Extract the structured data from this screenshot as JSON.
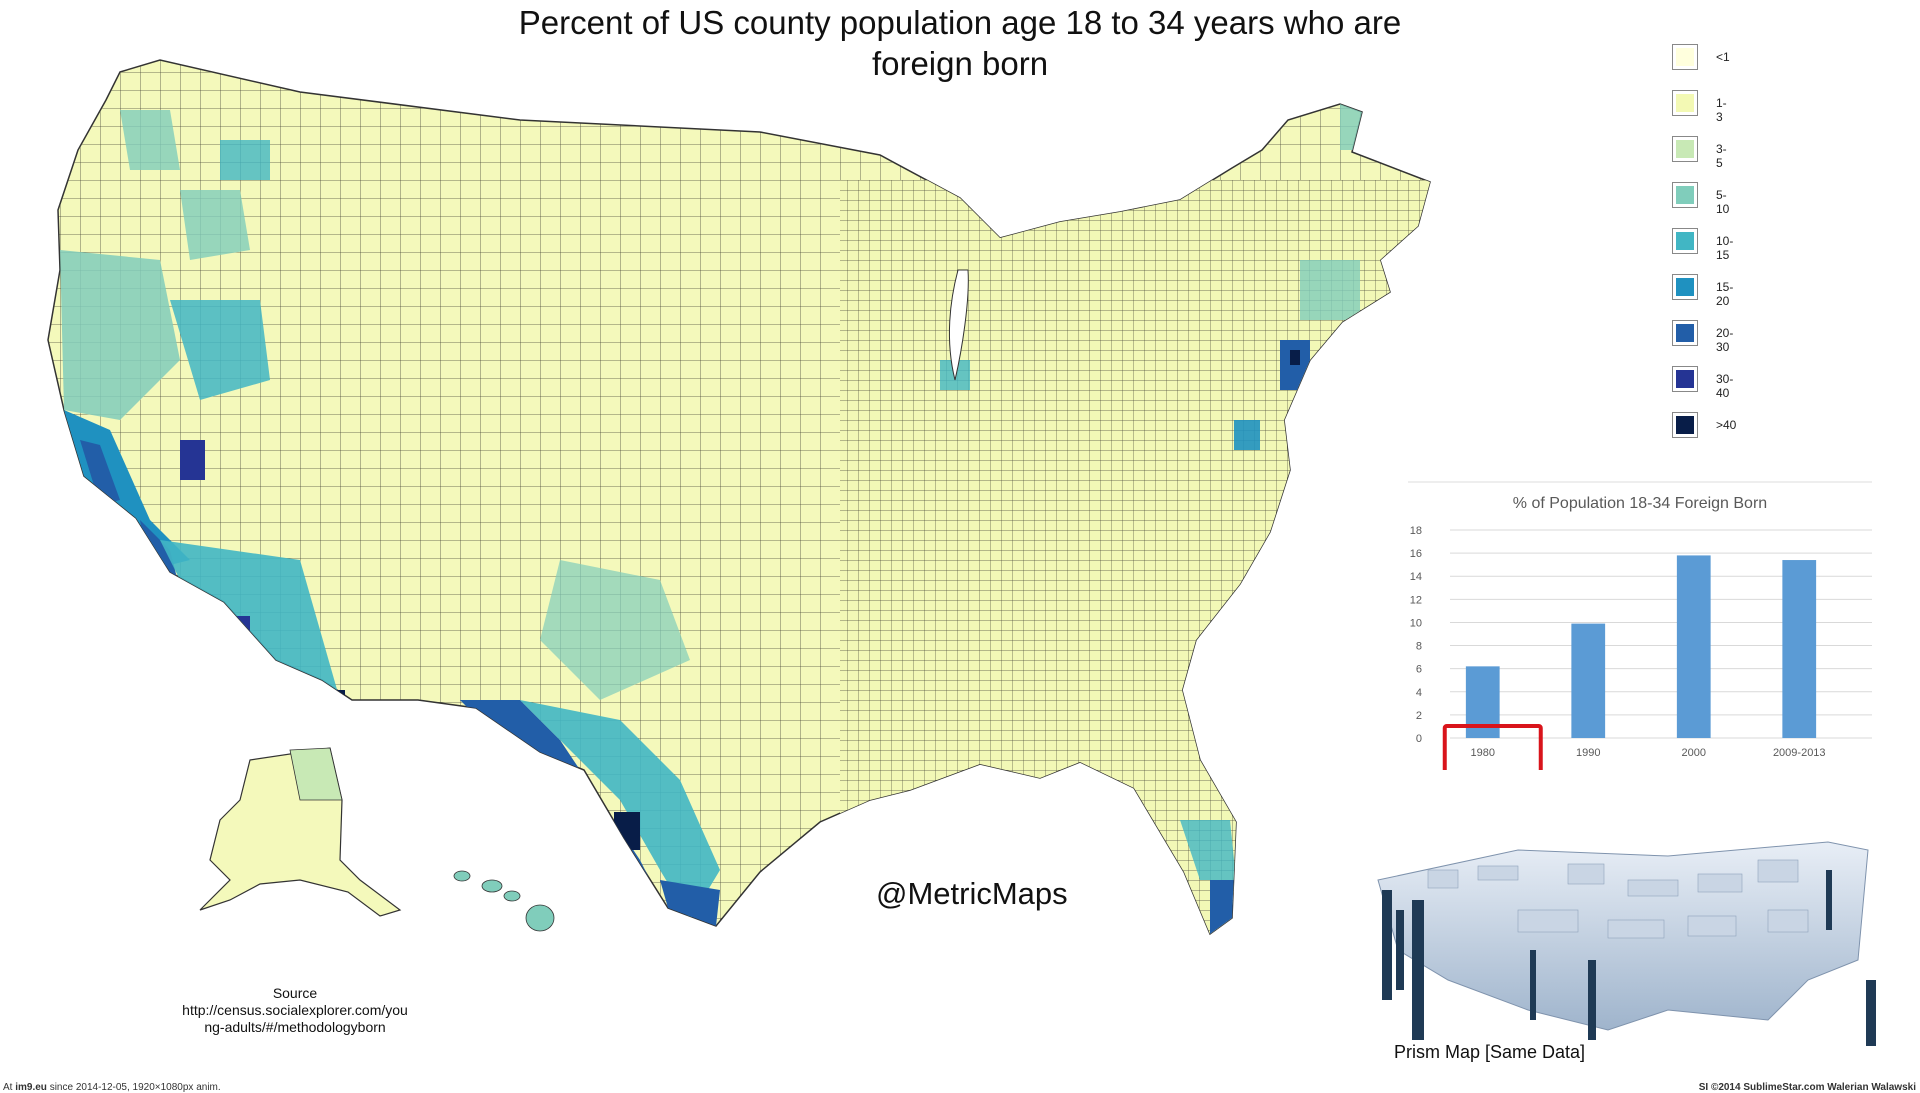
{
  "title": "Percent of US county population age 18 to 34 years who are foreign born",
  "legend": [
    {
      "label": "<1",
      "color": "#ffffdd"
    },
    {
      "label": "1-3",
      "color": "#f3f9b4"
    },
    {
      "label": "3-5",
      "color": "#c8e9b5"
    },
    {
      "label": "5-10",
      "color": "#80cdbb"
    },
    {
      "label": "10-15",
      "color": "#41b6c4"
    },
    {
      "label": "15-20",
      "color": "#1f91c0"
    },
    {
      "label": "20-30",
      "color": "#225ea8"
    },
    {
      "label": "30-40",
      "color": "#253494"
    },
    {
      "label": ">40",
      "color": "#081d48"
    }
  ],
  "watermark": "@MetricMaps",
  "source": {
    "heading": "Source",
    "line1": "http://census.socialexplorer.com/you",
    "line2": "ng-adults/#/methodologyborn"
  },
  "prism_caption": "Prism Map [Same Data]",
  "footer": {
    "left_prefix": "At ",
    "left_link": "im9.eu",
    "left_suffix": " since 2014-12-05, 1920×1080px anim.",
    "right": "SI ©2014 SublimeStar.com Walerian Walawski"
  },
  "chart_data": {
    "type": "bar",
    "title": "% of Population 18-34 Foreign Born",
    "categories": [
      "1980",
      "1990",
      "2000",
      "2009-2013"
    ],
    "values": [
      6.2,
      9.9,
      15.8,
      15.4
    ],
    "yticks": [
      0,
      2,
      4,
      6,
      8,
      10,
      12,
      14,
      16,
      18
    ],
    "ylim": [
      0,
      18
    ],
    "bar_color": "#5b9bd5",
    "highlight_category": "1980",
    "highlight_color": "#d9141b",
    "grid": true
  }
}
